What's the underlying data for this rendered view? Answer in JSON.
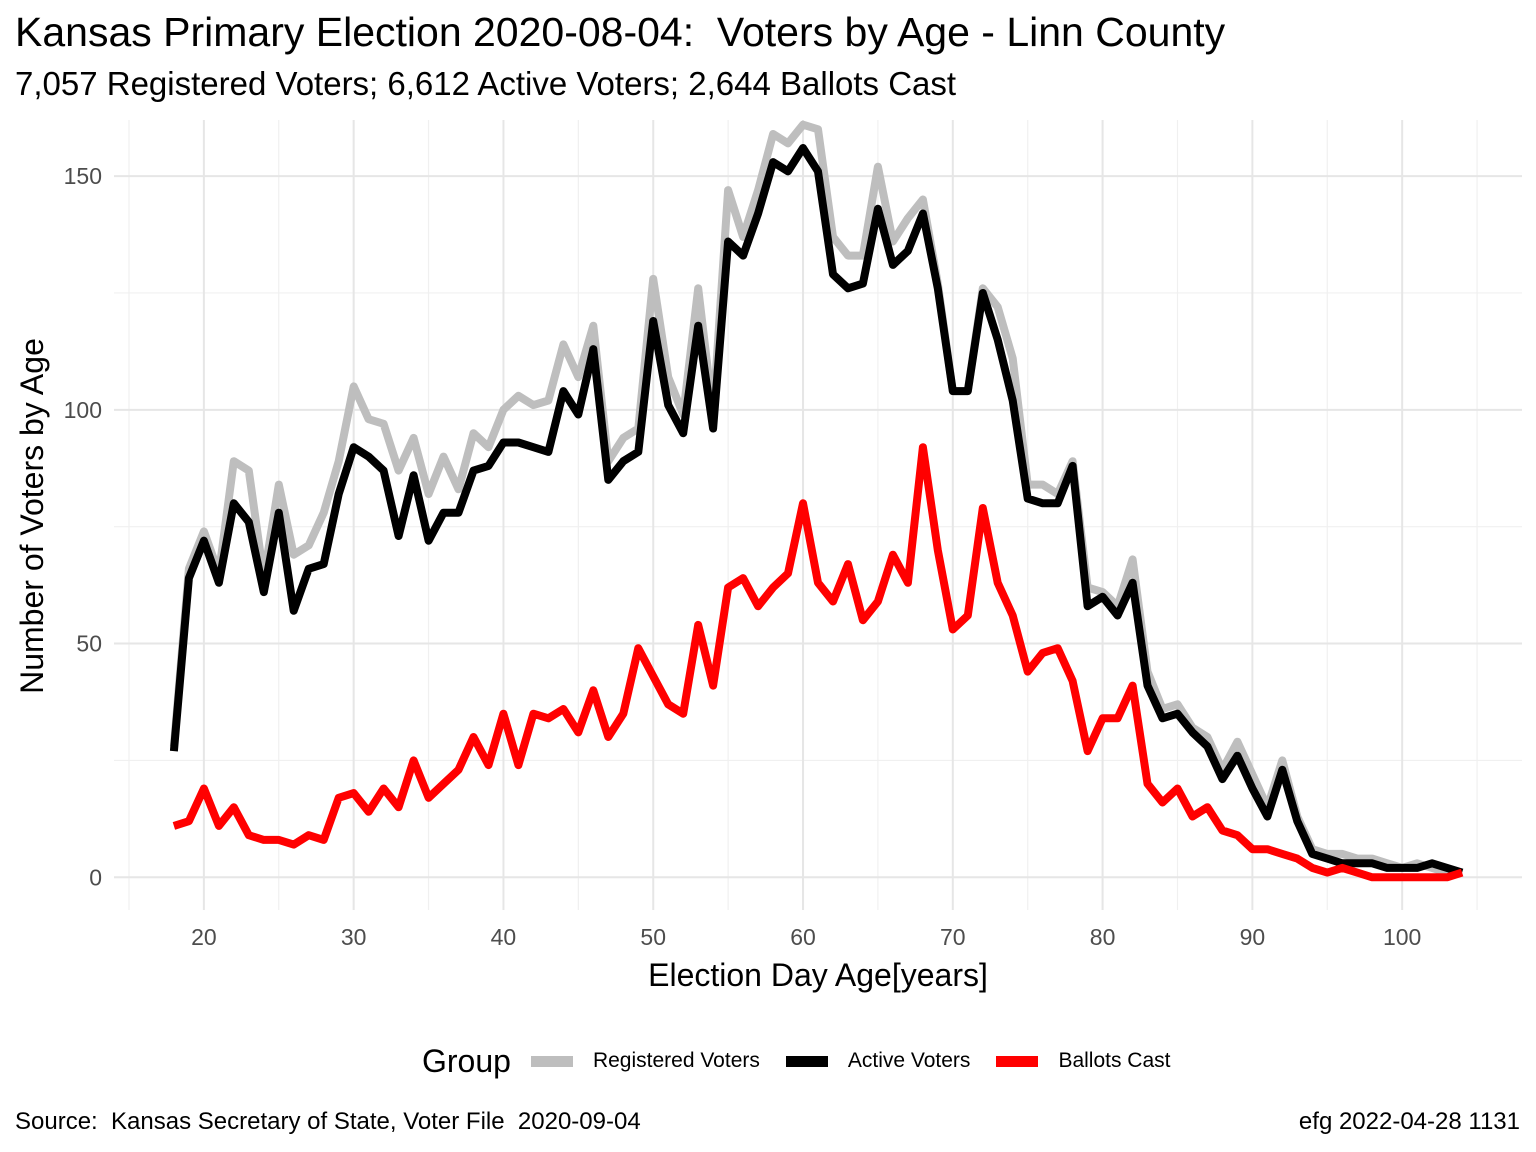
{
  "title": "Kansas Primary Election 2020-08-04:  Voters by Age - Linn County",
  "subtitle": "7,057 Registered Voters; 6,612 Active Voters; 2,644 Ballots Cast",
  "caption_left": "Source:  Kansas Secretary of State, Voter File  2020-09-04",
  "caption_right": "efg 2022-04-28 1131",
  "legend_title": "Group",
  "chart_data": {
    "type": "line",
    "xlabel": "Election Day Age[years]",
    "ylabel": "Number of Voters by Age",
    "xlim": [
      14,
      108
    ],
    "ylim": [
      -7,
      162
    ],
    "x_ticks": [
      20,
      30,
      40,
      50,
      60,
      70,
      80,
      90,
      100
    ],
    "y_ticks": [
      0,
      50,
      100,
      150
    ],
    "grid": true,
    "legend_position": "bottom",
    "x": [
      18,
      19,
      20,
      21,
      22,
      23,
      24,
      25,
      26,
      27,
      28,
      29,
      30,
      31,
      32,
      33,
      34,
      35,
      36,
      37,
      38,
      39,
      40,
      41,
      42,
      43,
      44,
      45,
      46,
      47,
      48,
      49,
      50,
      51,
      52,
      53,
      54,
      55,
      56,
      57,
      58,
      59,
      60,
      61,
      62,
      63,
      64,
      65,
      66,
      67,
      68,
      69,
      70,
      71,
      72,
      73,
      74,
      75,
      76,
      77,
      78,
      79,
      80,
      81,
      82,
      83,
      84,
      85,
      86,
      87,
      88,
      89,
      90,
      91,
      92,
      93,
      94,
      95,
      96,
      97,
      98,
      99,
      100,
      101,
      102,
      103,
      104
    ],
    "series": [
      {
        "name": "Registered Voters",
        "color": "#bebebe",
        "values": [
          28,
          66,
          74,
          65,
          89,
          87,
          64,
          84,
          69,
          71,
          78,
          89,
          105,
          98,
          97,
          87,
          94,
          82,
          90,
          83,
          95,
          92,
          100,
          103,
          101,
          102,
          114,
          107,
          118,
          89,
          94,
          96,
          128,
          107,
          99,
          126,
          99,
          147,
          137,
          147,
          159,
          157,
          161,
          160,
          137,
          133,
          133,
          152,
          136,
          141,
          145,
          127,
          104,
          104,
          126,
          122,
          111,
          84,
          84,
          82,
          89,
          62,
          61,
          58,
          68,
          44,
          36,
          37,
          32,
          30,
          23,
          29,
          22,
          15,
          25,
          13,
          6,
          5,
          5,
          4,
          4,
          3,
          2,
          3,
          2,
          1,
          1
        ]
      },
      {
        "name": "Active Voters",
        "color": "#000000",
        "values": [
          27,
          64,
          72,
          63,
          80,
          76,
          61,
          78,
          57,
          66,
          67,
          82,
          92,
          90,
          87,
          73,
          86,
          72,
          78,
          78,
          87,
          88,
          93,
          93,
          92,
          91,
          104,
          99,
          113,
          85,
          89,
          91,
          119,
          101,
          95,
          118,
          96,
          136,
          133,
          142,
          153,
          151,
          156,
          151,
          129,
          126,
          127,
          143,
          131,
          134,
          142,
          126,
          104,
          104,
          125,
          115,
          102,
          81,
          80,
          80,
          88,
          58,
          60,
          56,
          63,
          41,
          34,
          35,
          31,
          28,
          21,
          26,
          19,
          13,
          23,
          12,
          5,
          4,
          3,
          3,
          3,
          2,
          2,
          2,
          3,
          2,
          1
        ]
      },
      {
        "name": "Ballots Cast",
        "color": "#ff0000",
        "values": [
          11,
          12,
          19,
          11,
          15,
          9,
          8,
          8,
          7,
          9,
          8,
          17,
          18,
          14,
          19,
          15,
          25,
          17,
          20,
          23,
          30,
          24,
          35,
          24,
          35,
          34,
          36,
          31,
          40,
          30,
          35,
          49,
          43,
          37,
          35,
          54,
          41,
          62,
          64,
          58,
          62,
          65,
          80,
          63,
          59,
          67,
          55,
          59,
          69,
          63,
          92,
          70,
          53,
          56,
          79,
          63,
          56,
          44,
          48,
          49,
          42,
          27,
          34,
          34,
          41,
          20,
          16,
          19,
          13,
          15,
          10,
          9,
          6,
          6,
          5,
          4,
          2,
          1,
          2,
          1,
          0,
          0,
          0,
          0,
          0,
          0,
          1
        ]
      }
    ]
  }
}
